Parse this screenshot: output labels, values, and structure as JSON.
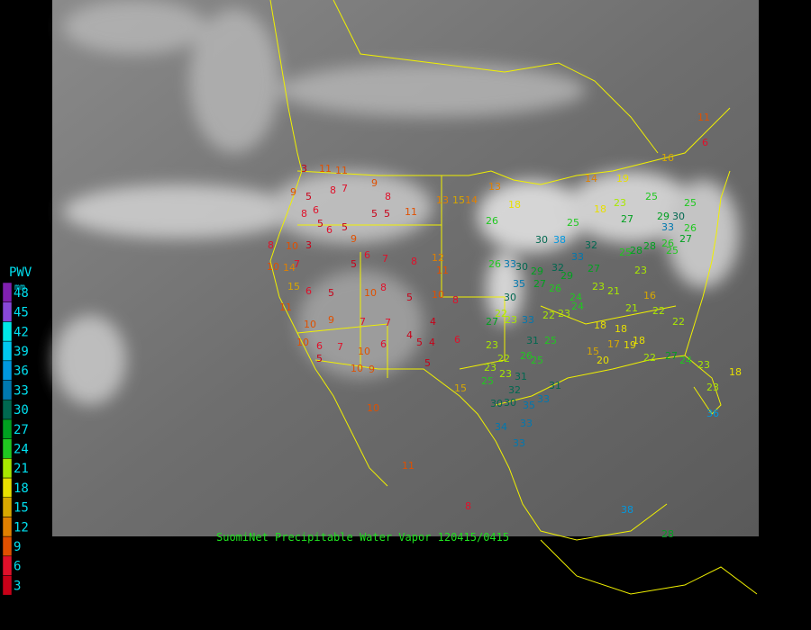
{
  "caption": "SuomiNet Precipitable Water Vapor 120415/0415",
  "legend": {
    "title": "PWV",
    "unit": "mm",
    "levels": [
      {
        "value": 3,
        "color": "#c80018"
      },
      {
        "value": 6,
        "color": "#e0102a"
      },
      {
        "value": 9,
        "color": "#e05000"
      },
      {
        "value": 12,
        "color": "#e08000"
      },
      {
        "value": 15,
        "color": "#d8a800"
      },
      {
        "value": 18,
        "color": "#e8e000"
      },
      {
        "value": 21,
        "color": "#a8e800"
      },
      {
        "value": 24,
        "color": "#20c820"
      },
      {
        "value": 27,
        "color": "#00a020"
      },
      {
        "value": 30,
        "color": "#006850"
      },
      {
        "value": 33,
        "color": "#0078b0"
      },
      {
        "value": 36,
        "color": "#0098e0"
      },
      {
        "value": 39,
        "color": "#00c8f0"
      },
      {
        "value": 42,
        "color": "#00e8e8"
      },
      {
        "value": 45,
        "color": "#8848d8"
      },
      {
        "value": 48,
        "color": "#8020b0"
      }
    ]
  },
  "stations": [
    3,
    11,
    11,
    9,
    5,
    8,
    7,
    6,
    8,
    5,
    6,
    5,
    9,
    5,
    5,
    11,
    9,
    8,
    8,
    10,
    3,
    10,
    14,
    7,
    5,
    6,
    7,
    8,
    12,
    11,
    15,
    6,
    5,
    10,
    8,
    5,
    10,
    8,
    11,
    10,
    9,
    7,
    7,
    4,
    10,
    6,
    7,
    10,
    6,
    4,
    5,
    4,
    6,
    5,
    10,
    9,
    5,
    10,
    15,
    11,
    8,
    13,
    15,
    14,
    13,
    18,
    26,
    30,
    38,
    32,
    33,
    26,
    33,
    30,
    35,
    29,
    32,
    27,
    26,
    29,
    27,
    24,
    30,
    22,
    27,
    23,
    33,
    22,
    23,
    24,
    23,
    21,
    25,
    28,
    28,
    26,
    25,
    23,
    16,
    21,
    22,
    22,
    18,
    18,
    18,
    15,
    17,
    19,
    20,
    22,
    27,
    24,
    23,
    23,
    18,
    23,
    22,
    26,
    23,
    23,
    25,
    25,
    31,
    25,
    31,
    32,
    30,
    30,
    35,
    33,
    31,
    34,
    33,
    33,
    36,
    38,
    28,
    25,
    18,
    27,
    25,
    29,
    30,
    25,
    26,
    27,
    33,
    19,
    16,
    11,
    6,
    14,
    23
  ]
}
